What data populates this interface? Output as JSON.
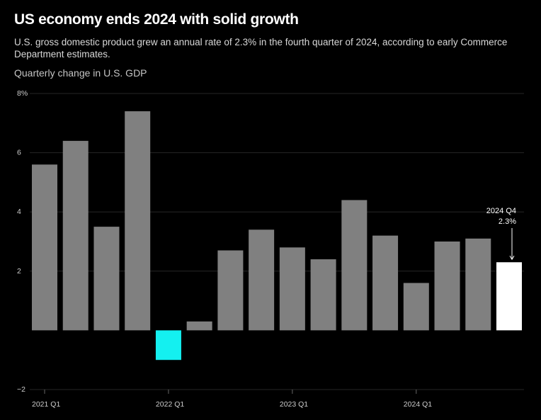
{
  "header": {
    "title": "US economy ends 2024 with solid growth",
    "subtitle": "U.S. gross domestic product grew an annual rate of 2.3% in the fourth quarter of 2024, according to early Commerce Department estimates.",
    "chart_label": "Quarterly change in U.S. GDP"
  },
  "chart_data": {
    "type": "bar",
    "title": "Quarterly change in U.S. GDP",
    "xlabel": "",
    "ylabel": "",
    "ylim": [
      -2,
      8
    ],
    "grid": true,
    "yticks": [
      {
        "value": 8,
        "label": "8%"
      },
      {
        "value": 6,
        "label": "6"
      },
      {
        "value": 4,
        "label": "4"
      },
      {
        "value": 2,
        "label": "2"
      },
      {
        "value": -2,
        "label": "−2"
      }
    ],
    "categories": [
      "2021 Q1",
      "2021 Q2",
      "2021 Q3",
      "2021 Q4",
      "2022 Q1",
      "2022 Q2",
      "2022 Q3",
      "2022 Q4",
      "2023 Q1",
      "2023 Q2",
      "2023 Q3",
      "2023 Q4",
      "2024 Q1",
      "2024 Q2",
      "2024 Q3",
      "2024 Q4"
    ],
    "xtick_labels": [
      {
        "index": 0,
        "label": "2021 Q1"
      },
      {
        "index": 4,
        "label": "2022 Q1"
      },
      {
        "index": 8,
        "label": "2023 Q1"
      },
      {
        "index": 12,
        "label": "2024 Q1"
      }
    ],
    "values": [
      5.6,
      6.4,
      3.5,
      7.4,
      -1.0,
      0.3,
      2.7,
      3.4,
      2.8,
      2.4,
      4.4,
      3.2,
      1.6,
      3.0,
      3.1,
      2.3
    ],
    "colors": {
      "default": "#808080",
      "negative": "#14f0f0",
      "latest": "#ffffff",
      "grid": "#262626",
      "axis_text": "#cccccc"
    },
    "annotation": {
      "index": 15,
      "line1": "2024 Q4",
      "line2": "2.3%"
    }
  }
}
